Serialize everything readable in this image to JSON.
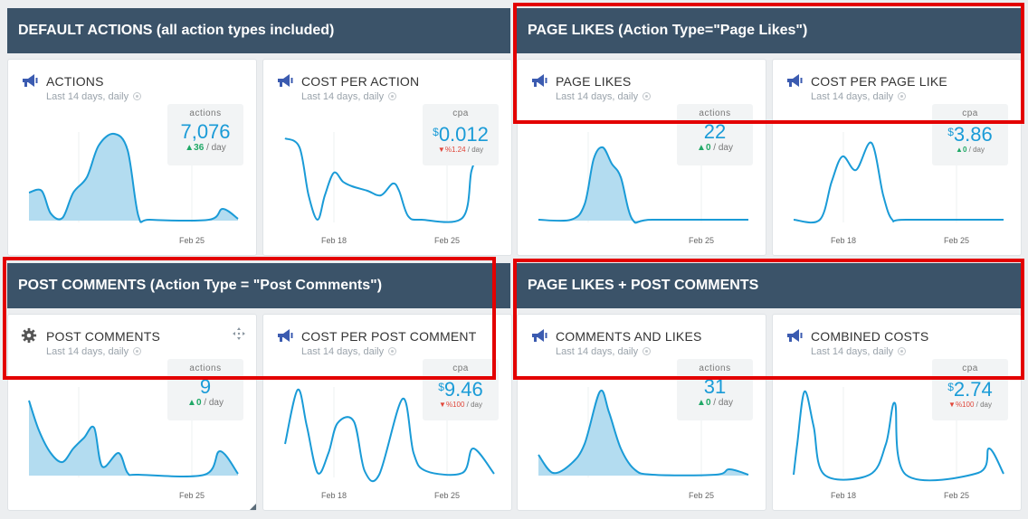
{
  "sections": [
    {
      "id": "default",
      "title": "DEFAULT ACTIONS (all action types included)"
    },
    {
      "id": "page-likes",
      "title": "PAGE LIKES (Action Type=\"Page Likes\")"
    },
    {
      "id": "post-comments",
      "title": "POST COMMENTS (Action Type = \"Post Comments\")"
    },
    {
      "id": "combined",
      "title": "PAGE LIKES + POST COMMENTS"
    }
  ],
  "subtitle": "Last 14 days, daily",
  "colors": {
    "header_bg": "#3b5369",
    "accent": "#1a9bd7",
    "fill": "#b3dcf0",
    "up": "#1fa866",
    "down": "#e0463a",
    "highlight": "#e30000"
  },
  "cards": [
    {
      "title": "ACTIONS",
      "icon": "megaphone-icon",
      "metric_label": "actions",
      "value": "7,076",
      "delta_dir": "up",
      "delta": "36",
      "per": "/ day",
      "ticks": [
        "Feb 25"
      ]
    },
    {
      "title": "COST PER ACTION",
      "icon": "megaphone-icon",
      "metric_label": "cpa",
      "currency": "$",
      "value": "0.012",
      "delta_dir": "down",
      "delta": "%1.24",
      "per": "/ day",
      "ticks": [
        "Feb 18",
        "Feb 25"
      ]
    },
    {
      "title": "PAGE LIKES",
      "icon": "megaphone-icon",
      "metric_label": "actions",
      "value": "22",
      "delta_dir": "up",
      "delta": "0",
      "per": "/ day",
      "ticks": [
        "Feb 25"
      ]
    },
    {
      "title": "COST PER PAGE LIKE",
      "icon": "megaphone-icon",
      "metric_label": "cpa",
      "currency": "$",
      "value": "3.86",
      "delta_dir": "up",
      "delta": "0",
      "per": "/ day",
      "ticks": [
        "Feb 18",
        "Feb 25"
      ]
    },
    {
      "title": "POST COMMENTS",
      "icon": "gear-icon",
      "metric_label": "actions",
      "value": "9",
      "delta_dir": "up",
      "delta": "0",
      "per": "/ day",
      "ticks": [
        "Feb 25"
      ]
    },
    {
      "title": "COST PER POST COMMENT",
      "icon": "megaphone-icon",
      "metric_label": "cpa",
      "currency": "$",
      "value": "9.46",
      "delta_dir": "down",
      "delta": "%100",
      "per": "/ day",
      "ticks": [
        "Feb 18",
        "Feb 25"
      ]
    },
    {
      "title": "COMMENTS AND LIKES",
      "icon": "megaphone-icon",
      "metric_label": "actions",
      "value": "31",
      "delta_dir": "up",
      "delta": "0",
      "per": "/ day",
      "ticks": [
        "Feb 25"
      ]
    },
    {
      "title": "COMBINED COSTS",
      "icon": "megaphone-icon",
      "metric_label": "cpa",
      "currency": "$",
      "value": "2.74",
      "delta_dir": "down",
      "delta": "%100",
      "per": "/ day",
      "ticks": [
        "Feb 18",
        "Feb 25"
      ]
    }
  ]
}
